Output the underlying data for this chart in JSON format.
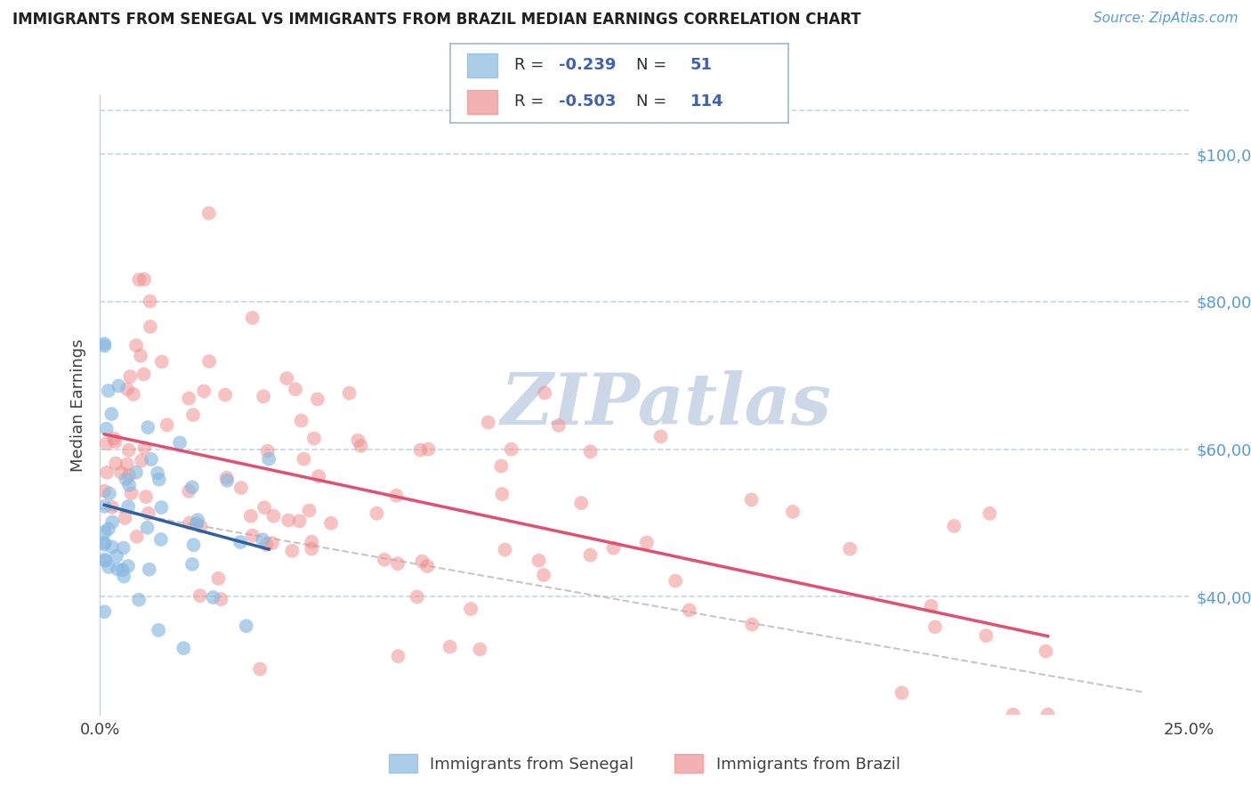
{
  "title": "IMMIGRANTS FROM SENEGAL VS IMMIGRANTS FROM BRAZIL MEDIAN EARNINGS CORRELATION CHART",
  "source": "Source: ZipAtlas.com",
  "ylabel": "Median Earnings",
  "ytick_values": [
    40000,
    60000,
    80000,
    100000
  ],
  "ylim": [
    24000,
    108000
  ],
  "xlim": [
    0.0,
    0.25
  ],
  "xlim_display": [
    "0.0%",
    "25.0%"
  ],
  "senegal_R": "-0.239",
  "senegal_N": "51",
  "brazil_R": "-0.503",
  "brazil_N": "114",
  "legend_label_blue": "Immigrants from Senegal",
  "legend_label_pink": "Immigrants from Brazil",
  "watermark": "ZIPatlas",
  "watermark_color": "#ccd8e8",
  "senegal_dot_color": "#88b8e0",
  "brazil_dot_color": "#f09090",
  "senegal_line_color": "#3060a0",
  "brazil_line_color": "#e05070",
  "dashed_line_color": "#c0c0c0",
  "background_color": "#ffffff",
  "grid_color": "#c8d4e8",
  "ytick_color": "#5b9bd5",
  "title_color": "#202020",
  "source_color": "#5b9bd5",
  "label_color": "#404040",
  "legend_R_color": "#4060b0",
  "legend_border_color": "#a0b8d0"
}
